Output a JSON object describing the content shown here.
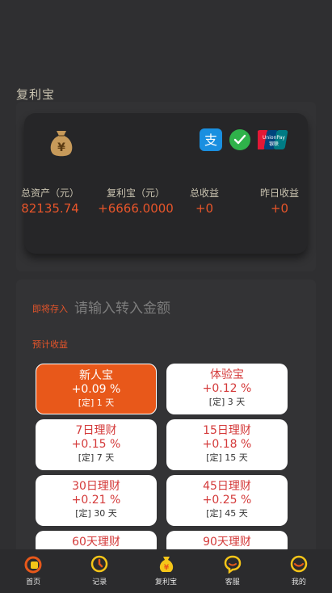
{
  "page": {
    "title": "复利宝"
  },
  "card": {
    "stats": [
      {
        "label": "总资产（元）",
        "value": "82135.74"
      },
      {
        "label": "复利宝（元）",
        "value": "+6666.0000"
      },
      {
        "label": "总收益",
        "value": "+0"
      },
      {
        "label": "昨日收益",
        "value": "+0"
      }
    ],
    "icons": {
      "bag": "money-bag-icon",
      "alipay": "alipay-icon",
      "wechat": "wechat-pay-icon",
      "unionpay": "unionpay-icon"
    }
  },
  "deposit": {
    "label": "即将存入",
    "placeholder": "请输入转入金额",
    "estimate_label": "预计收益"
  },
  "plans": [
    {
      "name": "新人宝",
      "rate": "+0.09 %",
      "term": "[定] 1 天",
      "active": true
    },
    {
      "name": "体验宝",
      "rate": "+0.12 %",
      "term": "[定] 3 天"
    },
    {
      "name": "7日理财",
      "rate": "+0.15 %",
      "term": "[定] 7 天"
    },
    {
      "name": "15日理财",
      "rate": "+0.18 %",
      "term": "[定] 15 天"
    },
    {
      "name": "30日理财",
      "rate": "+0.21 %",
      "term": "[定] 30 天"
    },
    {
      "name": "45日理财",
      "rate": "+0.25 %",
      "term": "[定] 45 天"
    },
    {
      "name": "60天理财",
      "rate": "",
      "term": ""
    },
    {
      "name": "90天理财",
      "rate": "",
      "term": ""
    }
  ],
  "tabbar": [
    {
      "label": "首页",
      "icon": "home-icon"
    },
    {
      "label": "记录",
      "icon": "record-icon"
    },
    {
      "label": "复利宝",
      "icon": "compound-icon"
    },
    {
      "label": "客服",
      "icon": "service-icon"
    },
    {
      "label": "我的",
      "icon": "profile-icon"
    }
  ],
  "colors": {
    "accent": "#e8552a",
    "active_plan": "#e8581a",
    "plan_text": "#d43a3a",
    "icon_yellow": "#f5c518"
  }
}
